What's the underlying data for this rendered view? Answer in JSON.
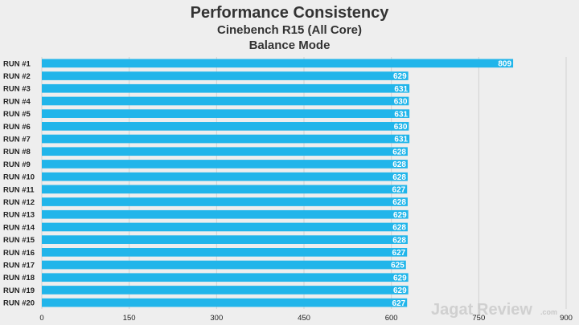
{
  "chart_data": {
    "type": "bar",
    "orientation": "horizontal",
    "title": "Performance Consistency",
    "subtitle_lines": [
      "Cinebench R15 (All Core)",
      "Balance Mode"
    ],
    "categories": [
      "RUN #1",
      "RUN #2",
      "RUN #3",
      "RUN #4",
      "RUN #5",
      "RUN #6",
      "RUN #7",
      "RUN #8",
      "RUN #9",
      "RUN #10",
      "RUN #11",
      "RUN #12",
      "RUN #13",
      "RUN #14",
      "RUN #15",
      "RUN #16",
      "RUN #17",
      "RUN #18",
      "RUN #19",
      "RUN #20"
    ],
    "values": [
      809,
      629,
      631,
      630,
      631,
      630,
      631,
      628,
      628,
      628,
      627,
      628,
      629,
      628,
      628,
      627,
      625,
      629,
      629,
      627
    ],
    "xlim": [
      0,
      900
    ],
    "xticks": [
      0,
      150,
      300,
      450,
      600,
      750,
      900
    ],
    "grid": true,
    "bar_color": "#21b5ea",
    "xlabel": "",
    "ylabel": ""
  },
  "watermark": {
    "brand_a": "Jagat",
    "brand_b": "Review",
    "suffix": ".com"
  }
}
